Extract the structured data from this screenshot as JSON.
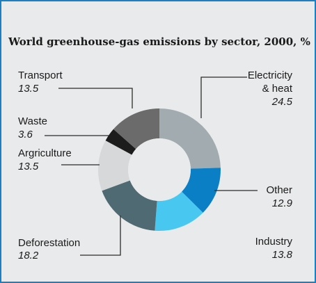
{
  "chart_data": {
    "type": "pie",
    "donut": true,
    "title": "World greenhouse-gas emissions by sector, 2000, %",
    "slices": [
      {
        "label": "Electricity & heat",
        "label_lines": [
          "Electricity",
          "& heat"
        ],
        "value": 24.5,
        "value_text": "24.5",
        "color": "#a2acb0"
      },
      {
        "label": "Other",
        "label_lines": [
          "Other"
        ],
        "value": 12.9,
        "value_text": "12.9",
        "color": "#0b7fc6"
      },
      {
        "label": "Industry",
        "label_lines": [
          "Industry"
        ],
        "value": 13.8,
        "value_text": "13.8",
        "color": "#48c8f0"
      },
      {
        "label": "Deforestation",
        "label_lines": [
          "Deforestation"
        ],
        "value": 18.2,
        "value_text": "18.2",
        "color": "#4f6a73"
      },
      {
        "label": "Argriculture",
        "label_lines": [
          "Argriculture"
        ],
        "value": 13.5,
        "value_text": "13.5",
        "color": "#d6d8d9"
      },
      {
        "label": "Waste",
        "label_lines": [
          "Waste"
        ],
        "value": 3.6,
        "value_text": "3.6",
        "color": "#1c1c1c"
      },
      {
        "label": "Transport",
        "label_lines": [
          "Transport"
        ],
        "value": 13.5,
        "value_text": "13.5",
        "color": "#6b6b6b"
      }
    ],
    "start_angle_deg": 0,
    "direction": "clockwise",
    "legend": "none"
  },
  "colors": {
    "frame": "#1b7fc4",
    "background": "#e9eaeb"
  }
}
